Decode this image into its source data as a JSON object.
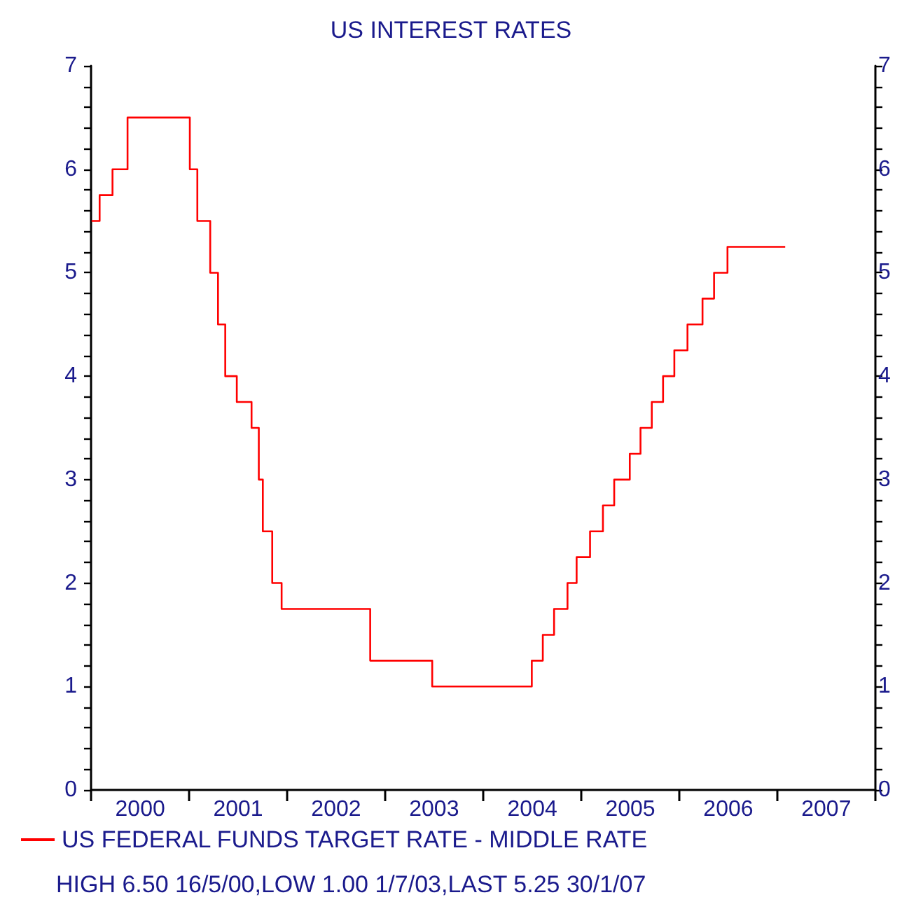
{
  "chart_data": {
    "type": "step",
    "title": "US INTEREST RATES",
    "x": [
      "2000-01-03",
      "2000-02-02",
      "2000-03-21",
      "2000-05-16",
      "2001-01-03",
      "2001-01-31",
      "2001-03-20",
      "2001-04-18",
      "2001-05-15",
      "2001-06-27",
      "2001-08-21",
      "2001-09-17",
      "2001-10-02",
      "2001-11-06",
      "2001-12-11",
      "2002-11-06",
      "2003-06-25",
      "2004-06-30",
      "2004-08-10",
      "2004-09-21",
      "2004-11-10",
      "2004-12-14",
      "2005-02-02",
      "2005-03-22",
      "2005-05-03",
      "2005-06-30",
      "2005-08-09",
      "2005-09-20",
      "2005-11-01",
      "2005-12-13",
      "2006-01-31",
      "2006-03-28",
      "2006-05-10",
      "2006-06-29",
      "2007-01-30"
    ],
    "series": [
      {
        "name": "US FEDERAL FUNDS TARGET RATE - MIDDLE RATE",
        "color": "#ff0000",
        "values": [
          5.5,
          5.75,
          6.0,
          6.5,
          6.0,
          5.5,
          5.0,
          4.5,
          4.0,
          3.75,
          3.5,
          3.0,
          2.5,
          2.0,
          1.75,
          1.25,
          1.0,
          1.25,
          1.5,
          1.75,
          2.0,
          2.25,
          2.5,
          2.75,
          3.0,
          3.25,
          3.5,
          3.75,
          4.0,
          4.25,
          4.5,
          4.75,
          5.0,
          5.25,
          5.25
        ]
      }
    ],
    "xlim": [
      "2000-01-01",
      "2008-01-01"
    ],
    "xticks": [
      {
        "value": "2000-01-01",
        "label": null
      },
      {
        "value": "2000-07-02",
        "label": "2000"
      },
      {
        "value": "2001-01-01",
        "label": null
      },
      {
        "value": "2001-07-02",
        "label": "2001"
      },
      {
        "value": "2002-01-01",
        "label": null
      },
      {
        "value": "2002-07-02",
        "label": "2002"
      },
      {
        "value": "2003-01-01",
        "label": null
      },
      {
        "value": "2003-07-02",
        "label": "2003"
      },
      {
        "value": "2004-01-01",
        "label": null
      },
      {
        "value": "2004-07-02",
        "label": "2004"
      },
      {
        "value": "2005-01-01",
        "label": null
      },
      {
        "value": "2005-07-02",
        "label": "2005"
      },
      {
        "value": "2006-01-01",
        "label": null
      },
      {
        "value": "2006-07-02",
        "label": "2006"
      },
      {
        "value": "2007-01-01",
        "label": null
      },
      {
        "value": "2007-07-02",
        "label": "2007"
      },
      {
        "value": "2008-01-01",
        "label": null
      }
    ],
    "ylim": [
      0,
      7
    ],
    "yticks": [
      0,
      {
        "value": 0.2,
        "label": null
      },
      {
        "value": 0.4,
        "label": null
      },
      {
        "value": 0.6,
        "label": null
      },
      {
        "value": 0.8,
        "label": null
      },
      1,
      {
        "value": 1.2,
        "label": null
      },
      {
        "value": 1.4,
        "label": null
      },
      {
        "value": 1.6,
        "label": null
      },
      {
        "value": 1.8,
        "label": null
      },
      2,
      {
        "value": 2.2,
        "label": null
      },
      {
        "value": 2.4,
        "label": null
      },
      {
        "value": 2.6,
        "label": null
      },
      {
        "value": 2.8,
        "label": null
      },
      3,
      {
        "value": 3.2,
        "label": null
      },
      {
        "value": 3.4,
        "label": null
      },
      {
        "value": 3.6,
        "label": null
      },
      {
        "value": 3.8,
        "label": null
      },
      4,
      {
        "value": 4.2,
        "label": null
      },
      {
        "value": 4.4,
        "label": null
      },
      {
        "value": 4.6,
        "label": null
      },
      {
        "value": 4.8,
        "label": null
      },
      5,
      {
        "value": 5.2,
        "label": null
      },
      {
        "value": 5.4,
        "label": null
      },
      {
        "value": 5.6,
        "label": null
      },
      {
        "value": 5.8,
        "label": null
      },
      6,
      {
        "value": 6.2,
        "label": null
      },
      {
        "value": 6.4,
        "label": null
      },
      {
        "value": 6.6,
        "label": null
      },
      {
        "value": 6.8,
        "label": null
      },
      7
    ],
    "y2lim": [
      0,
      7
    ],
    "y2ticks": [
      0,
      {
        "value": 0.2,
        "label": null
      },
      {
        "value": 0.4,
        "label": null
      },
      {
        "value": 0.6,
        "label": null
      },
      {
        "value": 0.8,
        "label": null
      },
      1,
      {
        "value": 1.2,
        "label": null
      },
      {
        "value": 1.4,
        "label": null
      },
      {
        "value": 1.6,
        "label": null
      },
      {
        "value": 1.8,
        "label": null
      },
      2,
      {
        "value": 2.2,
        "label": null
      },
      {
        "value": 2.4,
        "label": null
      },
      {
        "value": 2.6,
        "label": null
      },
      {
        "value": 2.8,
        "label": null
      },
      3,
      {
        "value": 3.2,
        "label": null
      },
      {
        "value": 3.4,
        "label": null
      },
      {
        "value": 3.6,
        "label": null
      },
      {
        "value": 3.8,
        "label": null
      },
      4,
      {
        "value": 4.2,
        "label": null
      },
      {
        "value": 4.4,
        "label": null
      },
      {
        "value": 4.6,
        "label": null
      },
      {
        "value": 4.8,
        "label": null
      },
      5,
      {
        "value": 5.2,
        "label": null
      },
      {
        "value": 5.4,
        "label": null
      },
      {
        "value": 5.6,
        "label": null
      },
      {
        "value": 5.8,
        "label": null
      },
      6,
      {
        "value": 6.2,
        "label": null
      },
      {
        "value": 6.4,
        "label": null
      },
      {
        "value": 6.6,
        "label": null
      },
      {
        "value": 6.8,
        "label": null
      },
      7
    ],
    "annotations": [
      "HIGH 6.50 16/5/00,LOW 1.00 1/7/03,LAST 5.25 30/1/07"
    ],
    "grid": false,
    "legend": "bottom",
    "marker": "none",
    "line_style": "solid"
  }
}
